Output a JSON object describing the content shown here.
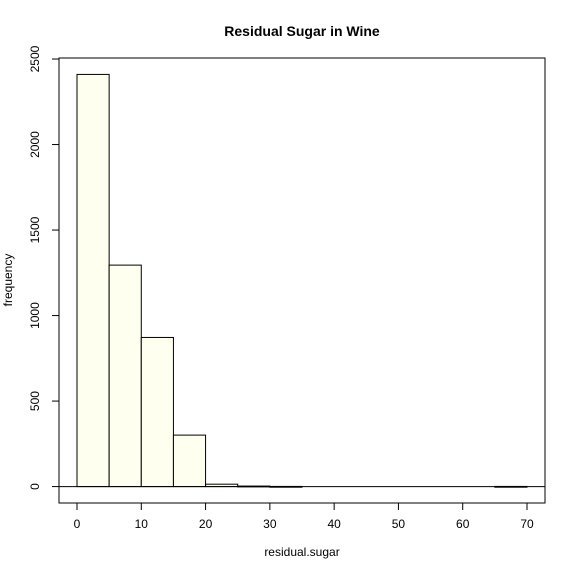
{
  "chart_data": {
    "type": "bar",
    "title": "Residual Sugar in Wine",
    "xlabel": "residual.sugar",
    "ylabel": "frequency",
    "bin_width": 5,
    "bins": [
      {
        "start": 0,
        "end": 5,
        "count": 2410
      },
      {
        "start": 5,
        "end": 10,
        "count": 1295
      },
      {
        "start": 10,
        "end": 15,
        "count": 872
      },
      {
        "start": 15,
        "end": 20,
        "count": 301
      },
      {
        "start": 20,
        "end": 25,
        "count": 14
      },
      {
        "start": 25,
        "end": 30,
        "count": 3
      },
      {
        "start": 30,
        "end": 35,
        "count": 1
      },
      {
        "start": 35,
        "end": 40,
        "count": 0
      },
      {
        "start": 40,
        "end": 45,
        "count": 0
      },
      {
        "start": 45,
        "end": 50,
        "count": 0
      },
      {
        "start": 50,
        "end": 55,
        "count": 0
      },
      {
        "start": 55,
        "end": 60,
        "count": 0
      },
      {
        "start": 60,
        "end": 65,
        "count": 0
      },
      {
        "start": 65,
        "end": 70,
        "count": 1
      }
    ],
    "x_ticks": [
      0,
      10,
      20,
      30,
      40,
      50,
      60,
      70
    ],
    "y_ticks": [
      0,
      500,
      1000,
      1500,
      2000,
      2500
    ],
    "xlim": [
      -2.8,
      72.8
    ],
    "ylim": [
      -96,
      2506
    ],
    "grid": false,
    "legend": "none",
    "colors": {
      "bar_fill": "#FFFFF0",
      "bar_stroke": "#000000",
      "axis": "#000000",
      "background": "#FFFFFF"
    }
  }
}
